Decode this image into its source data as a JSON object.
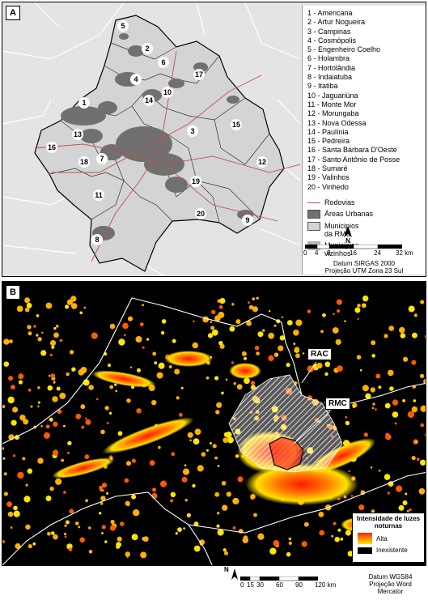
{
  "panel_a": {
    "label": "A",
    "municipalities": [
      "1 - Americana",
      "2 - Artur Nogueira",
      "3 - Campinas",
      "4 - Cosmópolis",
      "5 - Engenheiro Coelho",
      "6 - Holambra",
      "7 - Hortolândia",
      "8 - Indaiatuba",
      "9 - Itatiba",
      "10 - Jaguariúna",
      "11 - Monte Mor",
      "12 - Morungaba",
      "13 - Nova Odessa",
      "14 - Paulínia",
      "15 - Pedreira",
      "16 - Santa Bárbara D'Oeste",
      "17 - Santo Antônio de Posse",
      "18 - Sumaré",
      "19 - Valinhos",
      "20 - Vinhedo"
    ],
    "map_numbers": [
      "1",
      "2",
      "3",
      "4",
      "5",
      "6",
      "7",
      "8",
      "9",
      "10",
      "11",
      "12",
      "13",
      "14",
      "15",
      "16",
      "17",
      "18",
      "19",
      "20"
    ],
    "legend": {
      "rodovias": "Rodovias",
      "urban": "Áreas Urbanas",
      "rmc_l1": "Municipios",
      "rmc_l2": "da RMC",
      "nb_l1": "Municipios",
      "nb_l2": "vizinhos"
    },
    "north": "N",
    "scale_ticks": [
      "0",
      "4",
      "8",
      "16",
      "24",
      "32 km"
    ],
    "datum": "Datum SIRGAS 2000",
    "projection": "Projeção UTM Zona 23 Sul",
    "colors": {
      "urban": "#707070",
      "rmc": "#d4d4d4",
      "neighbors": "#b4b4b4",
      "roads": "#c0504d"
    }
  },
  "panel_b": {
    "label": "B",
    "tag_rac": "RAC",
    "tag_rmc": "RMC",
    "legend_title_l1": "Intensidade de luzes",
    "legend_title_l2": "noturnas",
    "legend_high": "Alta",
    "legend_none": "Inexistente",
    "north": "N",
    "scale_ticks": [
      "0",
      "15",
      "30",
      "60",
      "90",
      "120 km"
    ],
    "datum": "Datum WGS84",
    "projection": "Projeção Word Mercator",
    "colors": {
      "high": "#ff2000",
      "mid": "#ffa000",
      "low": "#ffe600",
      "none": "#000000"
    }
  }
}
